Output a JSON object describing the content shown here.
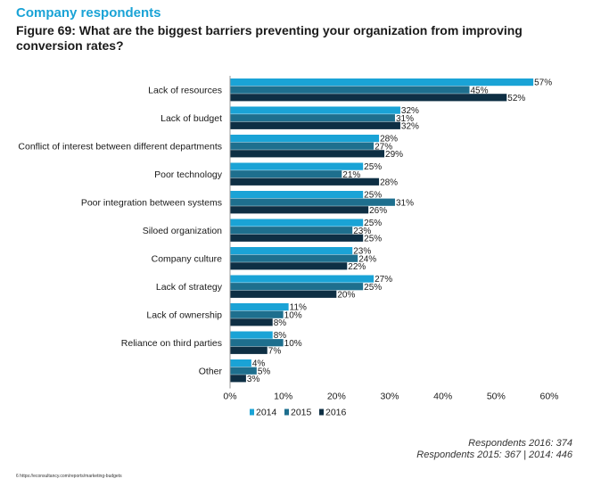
{
  "section_label": "Company respondents",
  "figure_title": "Figure 69: What are the biggest barriers preventing your organization from improving conversion rates?",
  "respondents": {
    "line1": "Respondents 2016: 374",
    "line2": "Respondents 2015: 367 | 2014: 446"
  },
  "footnote": "6 https://econsultancy.com/reports/marketing-budgets",
  "colors": {
    "2014": "#1aa3d6",
    "2015": "#1e6f8e",
    "2016": "#0e2f44",
    "axis": "#999999"
  },
  "chart_data": {
    "type": "bar",
    "orientation": "horizontal",
    "categories": [
      "Lack of resources",
      "Lack of budget",
      "Conflict of interest between different departments",
      "Poor technology",
      "Poor integration between systems",
      "Siloed organization",
      "Company culture",
      "Lack of strategy",
      "Lack of ownership",
      "Reliance on third parties",
      "Other"
    ],
    "series": [
      {
        "name": "2014",
        "values": [
          57,
          32,
          28,
          25,
          25,
          25,
          23,
          27,
          11,
          8,
          4
        ]
      },
      {
        "name": "2015",
        "values": [
          45,
          31,
          27,
          21,
          31,
          23,
          24,
          25,
          10,
          10,
          5
        ]
      },
      {
        "name": "2016",
        "values": [
          52,
          32,
          29,
          28,
          26,
          25,
          22,
          20,
          8,
          7,
          3
        ]
      }
    ],
    "xlim": [
      0,
      60
    ],
    "xticks": [
      0,
      10,
      20,
      30,
      40,
      50,
      60
    ],
    "xtick_labels": [
      "0%",
      "10%",
      "20%",
      "30%",
      "40%",
      "50%",
      "60%"
    ],
    "value_suffix": "%",
    "legend": [
      "2014",
      "2015",
      "2016"
    ],
    "legend_position": "bottom",
    "grid": false
  }
}
